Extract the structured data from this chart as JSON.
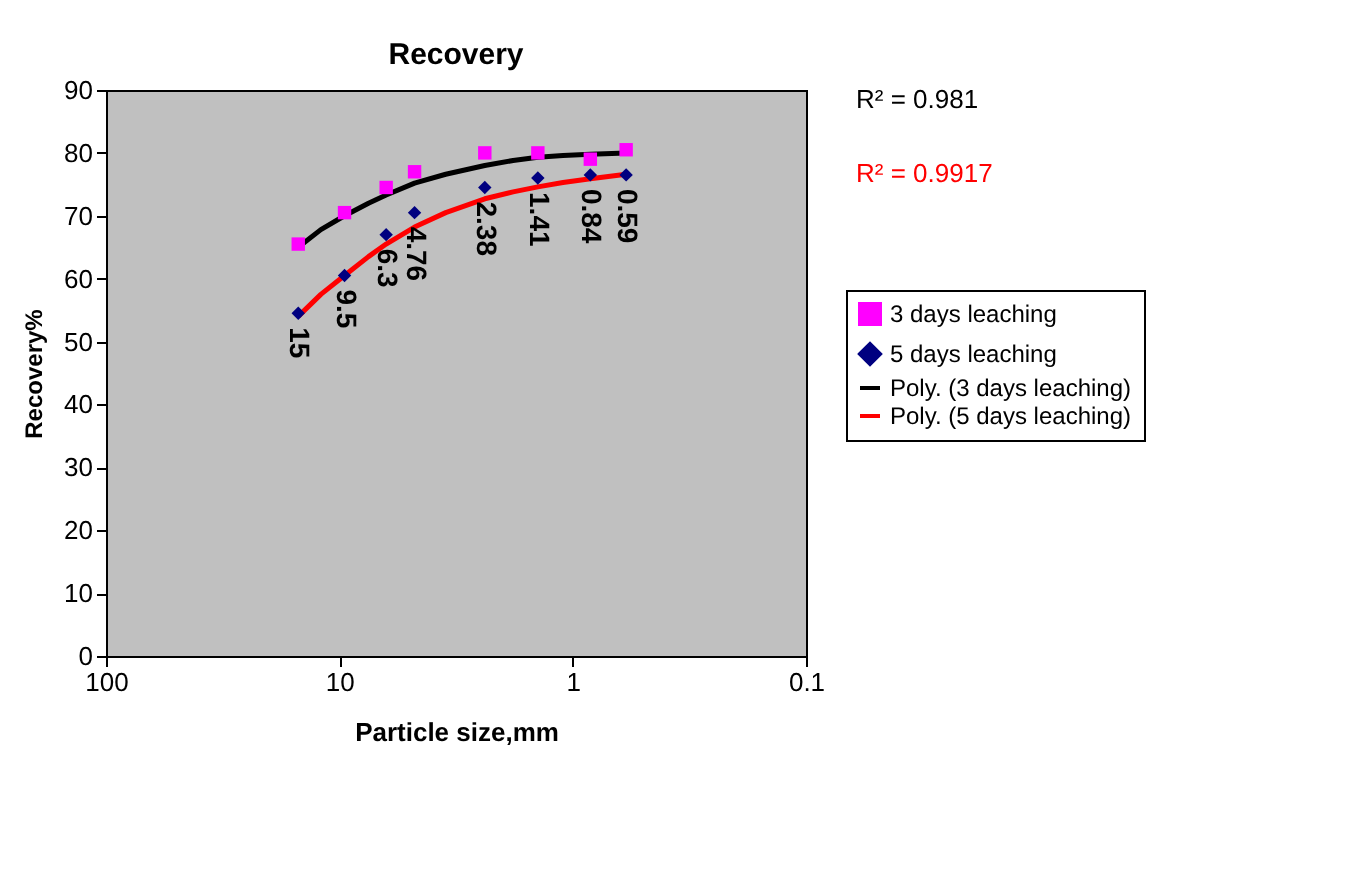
{
  "chart_data": {
    "type": "scatter",
    "title": "Recovery",
    "xlabel": "Particle size,mm",
    "ylabel": "Recovery%",
    "log": "x",
    "xlim": [
      100,
      0.1
    ],
    "xticks": [
      100,
      10,
      1,
      0.1
    ],
    "ylim": [
      0,
      90
    ],
    "yticks": [
      0,
      10,
      20,
      30,
      40,
      50,
      60,
      70,
      80,
      90
    ],
    "grid": false,
    "legend": "right",
    "annotations": [
      "R² = 0.981",
      "R² = 0.9917",
      {
        "text": "15",
        "x": 15,
        "y": 54.5
      },
      {
        "text": "9.5",
        "x": 9.5,
        "y": 60.5
      },
      {
        "text": "6.3",
        "x": 6.3,
        "y": 67
      },
      {
        "text": "4.76",
        "x": 4.76,
        "y": 70.5
      },
      {
        "text": "2.38",
        "x": 2.38,
        "y": 74.5
      },
      {
        "text": "1.41",
        "x": 1.41,
        "y": 76
      },
      {
        "text": "0.84",
        "x": 0.84,
        "y": 76.5
      },
      {
        "text": "0.59",
        "x": 0.59,
        "y": 76.5
      }
    ],
    "series": [
      {
        "name": "3 days leaching",
        "type": "scatter",
        "marker": "square",
        "color": "#ff00ff",
        "x": [
          15,
          9.5,
          6.3,
          4.76,
          2.38,
          1.41,
          0.84,
          0.59
        ],
        "values": [
          65.5,
          70.5,
          74.5,
          77,
          80,
          80,
          79,
          80.5
        ]
      },
      {
        "name": "5 days leaching",
        "type": "scatter",
        "marker": "diamond",
        "color": "#000080",
        "x": [
          15,
          9.5,
          6.3,
          4.76,
          2.38,
          1.41,
          0.84,
          0.59
        ],
        "values": [
          54.5,
          60.5,
          67,
          70.5,
          74.5,
          76,
          76.5,
          76.5
        ]
      },
      {
        "name": "Poly. (3 days leaching)",
        "type": "line",
        "marker": "none",
        "line_style": "solid",
        "color": "#000000",
        "x": [
          15,
          12,
          9.5,
          7.5,
          6.3,
          4.76,
          3.5,
          2.38,
          1.8,
          1.41,
          1.1,
          0.84,
          0.59
        ],
        "values": [
          65,
          67.8,
          70,
          72,
          73.3,
          75.2,
          76.6,
          78,
          78.8,
          79.3,
          79.6,
          79.8,
          80
        ]
      },
      {
        "name": "Poly. (5 days leaching)",
        "type": "line",
        "marker": "none",
        "line_style": "solid",
        "color": "#ff0000",
        "x": [
          15,
          12,
          9.5,
          7.5,
          6.3,
          4.76,
          3.5,
          2.38,
          1.8,
          1.41,
          1.1,
          0.84,
          0.59
        ],
        "values": [
          54,
          57.5,
          60.5,
          63.5,
          65.5,
          68.2,
          70.5,
          72.7,
          73.8,
          74.6,
          75.3,
          75.9,
          76.6
        ]
      }
    ]
  }
}
